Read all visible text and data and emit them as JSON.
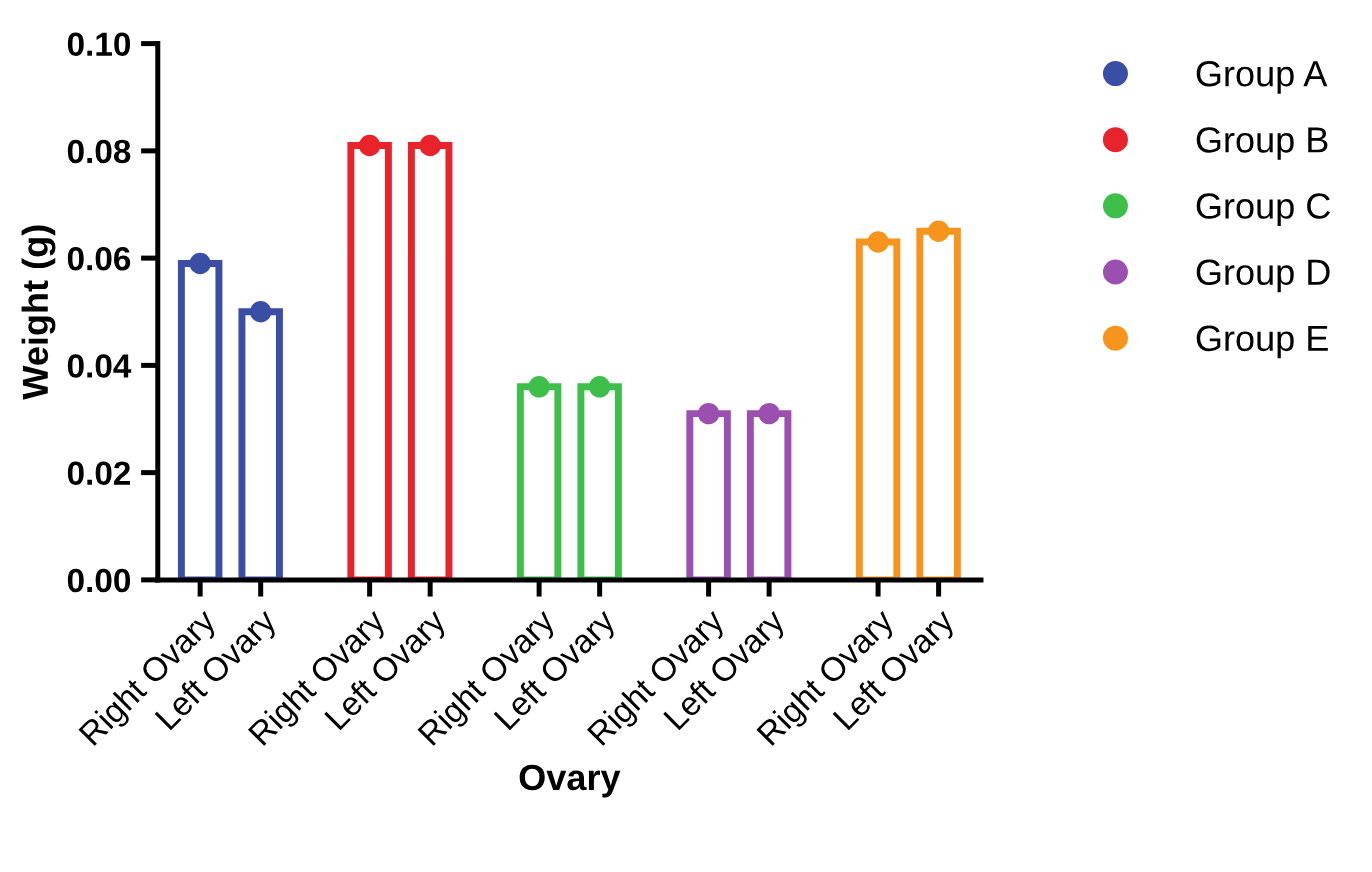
{
  "chart_data": {
    "type": "bar",
    "xlabel": "Ovary",
    "ylabel": "Weight (g)",
    "categories": [
      "Right Ovary",
      "Left Ovary",
      "Right Ovary",
      "Left Ovary",
      "Right Ovary",
      "Left Ovary",
      "Right Ovary",
      "Left Ovary",
      "Right Ovary",
      "Left Ovary"
    ],
    "series": [
      {
        "name": "Group A",
        "color": "#3a4ea6",
        "values": [
          0.059,
          0.05,
          null,
          null,
          null,
          null,
          null,
          null,
          null,
          null
        ]
      },
      {
        "name": "Group B",
        "color": "#e8232a",
        "values": [
          null,
          null,
          0.081,
          0.081,
          null,
          null,
          null,
          null,
          null,
          null
        ]
      },
      {
        "name": "Group C",
        "color": "#3dbf4a",
        "values": [
          null,
          null,
          null,
          null,
          0.036,
          0.036,
          null,
          null,
          null,
          null
        ]
      },
      {
        "name": "Group D",
        "color": "#9b4fb0",
        "values": [
          null,
          null,
          null,
          null,
          null,
          null,
          0.031,
          0.031,
          null,
          null
        ]
      },
      {
        "name": "Group E",
        "color": "#f7941d",
        "values": [
          null,
          null,
          null,
          null,
          null,
          null,
          null,
          null,
          0.063,
          0.065
        ]
      },
      {
        "type": "scatter",
        "color": "#3a4ea6",
        "values": [
          0.059,
          0.05,
          null,
          null,
          null,
          null,
          null,
          null,
          null,
          null
        ]
      },
      {
        "type": "scatter",
        "color": "#e8232a",
        "values": [
          null,
          null,
          0.081,
          0.081,
          null,
          null,
          null,
          null,
          null,
          null
        ]
      },
      {
        "type": "scatter",
        "color": "#3dbf4a",
        "values": [
          null,
          null,
          null,
          null,
          0.036,
          0.036,
          null,
          null,
          null,
          null
        ]
      },
      {
        "type": "scatter",
        "color": "#9b4fb0",
        "values": [
          null,
          null,
          null,
          null,
          null,
          null,
          0.031,
          0.031,
          null,
          null
        ]
      },
      {
        "type": "scatter",
        "color": "#f7941d",
        "values": [
          null,
          null,
          null,
          null,
          null,
          null,
          null,
          null,
          0.063,
          0.065
        ]
      }
    ],
    "ylim": [
      0,
      0.1
    ],
    "yticks": [
      {
        "value": 0,
        "label": "0.00"
      },
      {
        "value": 0.02,
        "label": "0.02"
      },
      {
        "value": 0.04,
        "label": "0.04"
      },
      {
        "value": 0.06,
        "label": "0.06"
      },
      {
        "value": 0.08,
        "label": "0.08"
      },
      {
        "value": 0.1,
        "label": "0.10"
      }
    ],
    "marker": "circle",
    "legend": "top right",
    "grid": false
  }
}
